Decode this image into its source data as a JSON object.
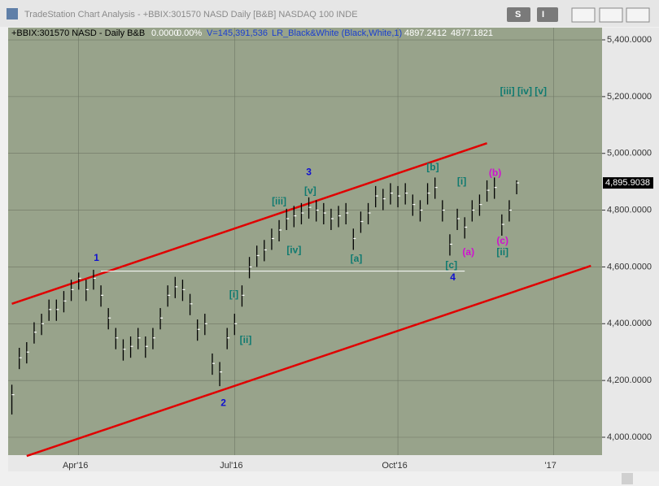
{
  "window": {
    "title": "TradeStation Chart Analysis - +BBIX:301570 NASD Daily [B&B] NASDAQ 100 INDE",
    "buttons": [
      "S",
      "I"
    ]
  },
  "chart_data": {
    "type": "ohlc",
    "info": [
      {
        "text": "+BBIX:301570 NASD - Daily  B&B",
        "color": "#000000"
      },
      {
        "text": "0.0000",
        "color": "#ffffff"
      },
      {
        "text": "0.00%",
        "color": "#ffffff"
      },
      {
        "text": "V=145,391,536",
        "color": "#1a3fd0"
      },
      {
        "text": "LR_Black&White (Black,White,1)",
        "color": "#1a3fd0"
      },
      {
        "text": "4897.2412",
        "color": "#ffffff"
      },
      {
        "text": "4877.1821",
        "color": "#ffffff"
      }
    ],
    "categories": [
      null,
      null,
      null,
      null,
      null,
      null,
      null,
      null,
      null,
      "Apr'16",
      null,
      null,
      null,
      null,
      null,
      null,
      null,
      null,
      null,
      null,
      null,
      null,
      null,
      null,
      null,
      null,
      null,
      null,
      null,
      null,
      "Jul'16",
      null,
      null,
      null,
      null,
      null,
      null,
      null,
      null,
      null,
      null,
      null,
      null,
      null,
      null,
      null,
      null,
      null,
      null,
      null,
      null,
      null,
      "Oct'16",
      null,
      null,
      null,
      null,
      null,
      null,
      null,
      null,
      null,
      null,
      null,
      null,
      null,
      null,
      null,
      null,
      null,
      null,
      null,
      null,
      "'17",
      null,
      null,
      null,
      null,
      null,
      null
    ],
    "high": [
      4185,
      4315,
      4335,
      4405,
      4435,
      4485,
      4485,
      4515,
      4555,
      4580,
      4555,
      4590,
      4535,
      4455,
      4385,
      4345,
      4355,
      4385,
      4355,
      4385,
      4455,
      4535,
      4565,
      4555,
      4505,
      4415,
      4435,
      4295,
      4265,
      4385,
      4435,
      4535,
      4635,
      4675,
      4695,
      4735,
      4765,
      4805,
      4815,
      4825,
      4845,
      4835,
      4825,
      4805,
      4815,
      4825,
      4735,
      4795,
      4825,
      4885,
      4875,
      4895,
      4885,
      4895,
      4855,
      4835,
      4895,
      4915,
      4835,
      4715,
      4805,
      4775,
      4835,
      4855,
      4905,
      4915,
      4785,
      4835,
      4905,
      null,
      null,
      null,
      null,
      null,
      null,
      null,
      null,
      null,
      null,
      null
    ],
    "low": [
      4080,
      4240,
      4260,
      4330,
      4360,
      4410,
      4410,
      4440,
      4480,
      4520,
      4480,
      4520,
      4460,
      4380,
      4310,
      4270,
      4280,
      4310,
      4280,
      4310,
      4380,
      4460,
      4490,
      4480,
      4430,
      4340,
      4360,
      4220,
      4180,
      4310,
      4360,
      4460,
      4560,
      4600,
      4620,
      4660,
      4690,
      4730,
      4740,
      4750,
      4770,
      4760,
      4750,
      4730,
      4740,
      4750,
      4660,
      4720,
      4750,
      4810,
      4800,
      4820,
      4810,
      4820,
      4780,
      4760,
      4820,
      4840,
      4760,
      4640,
      4730,
      4700,
      4760,
      4780,
      4830,
      4840,
      4710,
      4760,
      4856,
      null,
      null,
      null,
      null,
      null,
      null,
      null,
      null,
      null,
      null,
      null
    ],
    "close": [
      4150,
      4280,
      4300,
      4370,
      4400,
      4450,
      4450,
      4480,
      4520,
      4560,
      4520,
      4560,
      4500,
      4420,
      4350,
      4310,
      4320,
      4350,
      4320,
      4350,
      4420,
      4500,
      4530,
      4520,
      4470,
      4380,
      4400,
      4260,
      4230,
      4350,
      4400,
      4500,
      4600,
      4640,
      4660,
      4700,
      4730,
      4770,
      4780,
      4790,
      4810,
      4800,
      4790,
      4770,
      4780,
      4790,
      4700,
      4760,
      4790,
      4850,
      4840,
      4860,
      4850,
      4860,
      4820,
      4800,
      4860,
      4880,
      4800,
      4680,
      4770,
      4740,
      4800,
      4820,
      4870,
      4880,
      4750,
      4800,
      4896,
      null,
      null,
      null,
      null,
      null,
      null,
      null,
      null,
      null,
      null,
      null
    ],
    "ylim": [
      3937,
      5443
    ],
    "yticks": [
      {
        "value": 4000,
        "label": "4,000.0000"
      },
      {
        "value": 4200,
        "label": "4,200.0000"
      },
      {
        "value": 4400,
        "label": "4,400.0000"
      },
      {
        "value": 4600,
        "label": "4,600.0000"
      },
      {
        "value": 4800,
        "label": "4,800.0000"
      },
      {
        "value": 5000,
        "label": "5,000.0000"
      },
      {
        "value": 5200,
        "label": "5,200.0000"
      },
      {
        "value": 5400,
        "label": "5,400.0000"
      }
    ],
    "grid": true,
    "last_price": {
      "value": 4895.9038,
      "label": "4,895.9038"
    },
    "lines": [
      {
        "x": [
          0,
          64
        ],
        "y": [
          4470,
          5036
        ],
        "color": "#e00000"
      },
      {
        "x": [
          2,
          78
        ],
        "y": [
          3934,
          4604
        ],
        "color": "#e00000"
      },
      {
        "x": [
          12,
          61
        ],
        "y": [
          4585,
          4585
        ],
        "color": "#ffffff"
      }
    ],
    "annotations": [
      {
        "text": "1",
        "x": 11.4,
        "y": 4630,
        "color": "#1010d0"
      },
      {
        "text": "2",
        "x": 28.5,
        "y": 4120,
        "color": "#1010d0"
      },
      {
        "text": "3",
        "x": 40.0,
        "y": 4933,
        "color": "#1010d0"
      },
      {
        "text": "4",
        "x": 59.4,
        "y": 4561,
        "color": "#1010d0"
      },
      {
        "text": "[i]",
        "x": 29.9,
        "y": 4501,
        "color": "#0f7a70"
      },
      {
        "text": "[ii]",
        "x": 31.5,
        "y": 4341,
        "color": "#0f7a70"
      },
      {
        "text": "[iii]",
        "x": 36.0,
        "y": 4830,
        "color": "#0f7a70"
      },
      {
        "text": "[iv]",
        "x": 38.0,
        "y": 4658,
        "color": "#0f7a70"
      },
      {
        "text": "[v]",
        "x": 40.2,
        "y": 4867,
        "color": "#0f7a70"
      },
      {
        "text": "[a]",
        "x": 46.4,
        "y": 4627,
        "color": "#0f7a70"
      },
      {
        "text": "[b]",
        "x": 56.7,
        "y": 4950,
        "color": "#0f7a70"
      },
      {
        "text": "[c]",
        "x": 59.2,
        "y": 4604,
        "color": "#0f7a70"
      },
      {
        "text": "[i]",
        "x": 60.6,
        "y": 4899,
        "color": "#0f7a70"
      },
      {
        "text": "[ii]",
        "x": 66.1,
        "y": 4650,
        "color": "#0f7a70"
      },
      {
        "text": "[iii]  [iv]  [v]",
        "x": 68.9,
        "y": 5217,
        "color": "#0f7a70"
      },
      {
        "text": "(a)",
        "x": 61.5,
        "y": 4650,
        "color": "#d010d0"
      },
      {
        "text": "(b)",
        "x": 65.1,
        "y": 4930,
        "color": "#d010d0"
      },
      {
        "text": "(c)",
        "x": 66.1,
        "y": 4690,
        "color": "#d010d0"
      }
    ]
  }
}
